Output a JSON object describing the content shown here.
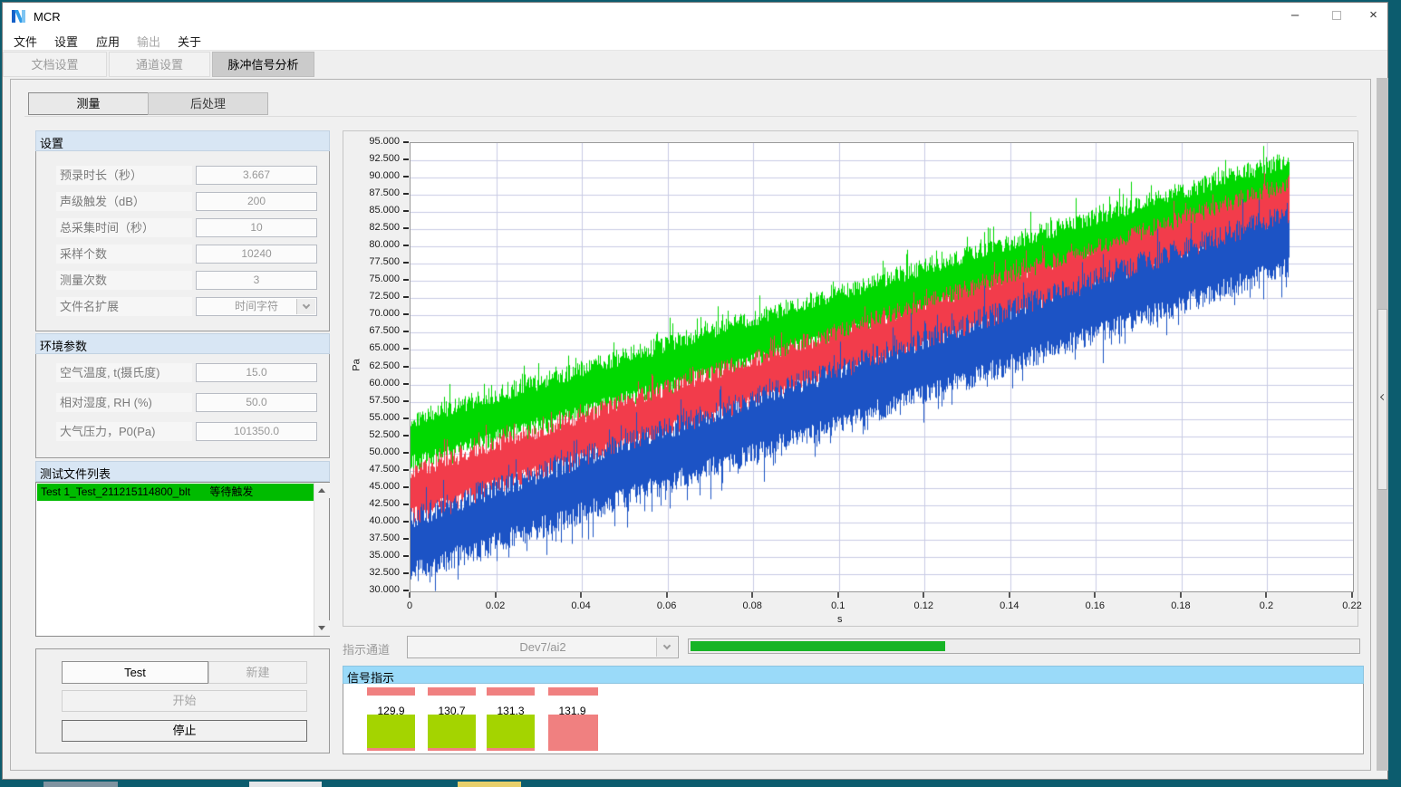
{
  "window": {
    "title": "MCR"
  },
  "icons": {
    "minimize": "–",
    "close": "×"
  },
  "menu": {
    "items": [
      {
        "label": "文件",
        "enabled": true
      },
      {
        "label": "设置",
        "enabled": true
      },
      {
        "label": "应用",
        "enabled": true
      },
      {
        "label": "输出",
        "enabled": false
      },
      {
        "label": "关于",
        "enabled": true
      }
    ]
  },
  "tabs": [
    {
      "label": "文档设置",
      "active": false
    },
    {
      "label": "通道设置",
      "active": false
    },
    {
      "label": "脉冲信号分析",
      "active": true
    }
  ],
  "subtabs": [
    {
      "label": "测量",
      "active": true
    },
    {
      "label": "后处理",
      "active": false
    }
  ],
  "settings": {
    "header": "设置",
    "fields": [
      {
        "label": "预录时长（秒）",
        "value": "3.667"
      },
      {
        "label": "声级触发（dB）",
        "value": "200"
      },
      {
        "label": "总采集时间（秒）",
        "value": "10"
      },
      {
        "label": "采样个数",
        "value": "10240"
      },
      {
        "label": "测量次数",
        "value": "3"
      },
      {
        "label": "文件名扩展",
        "value": "时间字符",
        "type": "select"
      }
    ]
  },
  "environment": {
    "header": "环境参数",
    "fields": [
      {
        "label": "空气温度, t(摄氏度)",
        "value": "15.0"
      },
      {
        "label": "相对湿度, RH (%)",
        "value": "50.0"
      },
      {
        "label": "大气压力，P0(Pa)",
        "value": "101350.0"
      }
    ]
  },
  "file_list": {
    "header": "测试文件列表",
    "items": [
      {
        "name": "Test 1_Test_211215114800_blt",
        "status": "等待触发",
        "highlight_color": "#00bb00"
      }
    ]
  },
  "controls": {
    "test": "Test",
    "new": "新建",
    "start": "开始",
    "stop": "停止"
  },
  "indicator": {
    "label": "指示通道",
    "channel": "Dev7/ai2",
    "progress_percent": 38,
    "progress_color": "#17b426"
  },
  "signal": {
    "header": "信号指示",
    "items": [
      {
        "value": "129.9",
        "top_bar_color": "#f08080",
        "block_color": "#a4d400",
        "block_base_color": "#f08080"
      },
      {
        "value": "130.7",
        "top_bar_color": "#f08080",
        "block_color": "#a4d400",
        "block_base_color": "#f08080"
      },
      {
        "value": "131.3",
        "top_bar_color": "#f08080",
        "block_color": "#a4d400",
        "block_base_color": "#f08080"
      },
      {
        "value": "131.9",
        "top_bar_color": "#f08080",
        "block_color": "#f08080",
        "block_base_color": "#f08080"
      }
    ]
  },
  "chart_data": {
    "type": "line",
    "title": "",
    "xlabel": "s",
    "ylabel": "Pa",
    "xlim": [
      0,
      0.22
    ],
    "ylim": [
      30,
      95
    ],
    "grid": true,
    "grid_color": "#c9cbe5",
    "x_ticks": [
      "0",
      "0.02",
      "0.04",
      "0.06",
      "0.08",
      "0.1",
      "0.12",
      "0.14",
      "0.16",
      "0.18",
      "0.2",
      "0.22"
    ],
    "y_ticks": [
      "95.000",
      "92.500",
      "90.000",
      "87.500",
      "85.000",
      "82.500",
      "80.000",
      "77.500",
      "75.000",
      "72.500",
      "70.000",
      "67.500",
      "65.000",
      "62.500",
      "60.000",
      "57.500",
      "55.000",
      "52.500",
      "50.000",
      "47.500",
      "45.000",
      "42.500",
      "40.000",
      "37.500",
      "35.000",
      "32.500",
      "30.000"
    ],
    "series": [
      {
        "name": "channel-green",
        "color": "#00d900",
        "x_start": 0,
        "x_end": 0.205,
        "y_center_start": 51.7,
        "y_center_end": 89.5,
        "band_halfwidth": 3.2,
        "description": "noisy rising band"
      },
      {
        "name": "channel-red",
        "color": "#f23c4b",
        "x_start": 0,
        "x_end": 0.205,
        "y_center_start": 44.2,
        "y_center_end": 86.0,
        "band_halfwidth": 3.2,
        "description": "noisy rising band"
      },
      {
        "name": "channel-blue",
        "color": "#1c53c5",
        "x_start": 0,
        "x_end": 0.205,
        "y_center_start": 36.7,
        "y_center_end": 81.0,
        "band_halfwidth": 4.0,
        "description": "noisy rising band"
      }
    ]
  },
  "desktop": {
    "color": "#0c5c6e",
    "taskbar_icon_fragments": [
      "#7f93a0",
      "#e3e5e8",
      "#e8cf6a"
    ]
  }
}
